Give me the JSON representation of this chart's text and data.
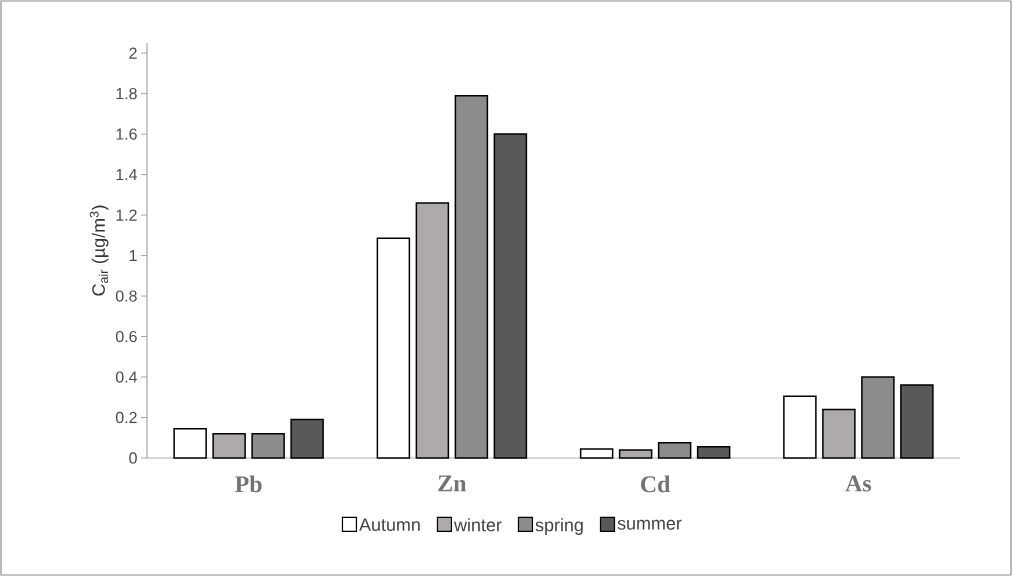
{
  "chart_data": {
    "type": "bar",
    "ylabel": "C$_{air}$ (µg/m$^{3}$)",
    "categories": [
      "Pb",
      "Zn",
      "Cd",
      "As"
    ],
    "series": [
      {
        "name": "Autumn",
        "color": "#ffffff",
        "values": [
          0.145,
          1.085,
          0.045,
          0.305
        ]
      },
      {
        "name": "winter",
        "color": "#aeaaaa",
        "values": [
          0.12,
          1.26,
          0.04,
          0.24
        ]
      },
      {
        "name": "spring",
        "color": "#8c8c8c",
        "values": [
          0.12,
          1.79,
          0.075,
          0.4
        ]
      },
      {
        "name": "summer",
        "color": "#595959",
        "values": [
          0.19,
          1.6,
          0.055,
          0.36
        ]
      }
    ],
    "ylim": [
      0,
      2.05
    ],
    "yticks": [
      0,
      0.2,
      0.4,
      0.6,
      0.8,
      1,
      1.2,
      1.4,
      1.6,
      1.8,
      2
    ],
    "legend": "bottom",
    "grid": false
  }
}
